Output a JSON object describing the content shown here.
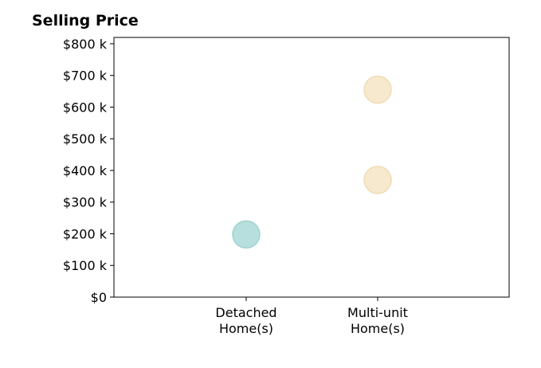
{
  "chart_data": {
    "type": "scatter",
    "title": "Selling Price",
    "xlabel": "",
    "ylabel": "",
    "categories": [
      "Detached\nHome(s)",
      "Multi-unit\nHome(s)"
    ],
    "y_ticks": [
      "$0",
      "$100 k",
      "$200 k",
      "$300 k",
      "$400 k",
      "$500 k",
      "$600 k",
      "$700 k",
      "$800 k"
    ],
    "ylim": [
      0,
      820000
    ],
    "grid": false,
    "points": [
      {
        "category": "Detached\nHome(s)",
        "value": 198000,
        "color": "#b7dfdd",
        "edge": "#9fd3d0"
      },
      {
        "category": "Multi-unit\nHome(s)",
        "value": 655000,
        "color": "#f7e9cd",
        "edge": "#efdcb6"
      },
      {
        "category": "Multi-unit\nHome(s)",
        "value": 370000,
        "color": "#f7e9cd",
        "edge": "#efdcb6"
      }
    ]
  }
}
